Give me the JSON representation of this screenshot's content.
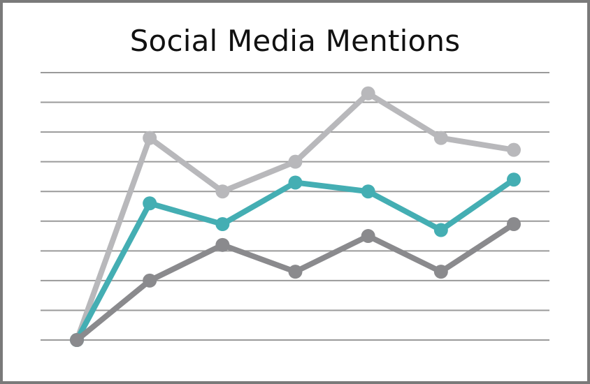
{
  "chart_data": {
    "type": "line",
    "title": "Social Media Mentions",
    "xlabel": "",
    "ylabel": "",
    "x": [
      1,
      2,
      3,
      4,
      5,
      6,
      7
    ],
    "ylim": [
      0,
      9
    ],
    "grid": true,
    "legend": "none",
    "series": [
      {
        "color": "#b8b8bb",
        "values": [
          0,
          6.8,
          5.0,
          6.0,
          8.3,
          6.8,
          6.4
        ]
      },
      {
        "color": "#44aeb3",
        "values": [
          0,
          4.6,
          3.9,
          5.3,
          5.0,
          3.7,
          5.4
        ]
      },
      {
        "color": "#8a8a8d",
        "values": [
          0,
          2.0,
          3.2,
          2.3,
          3.5,
          2.3,
          3.9
        ]
      }
    ]
  }
}
